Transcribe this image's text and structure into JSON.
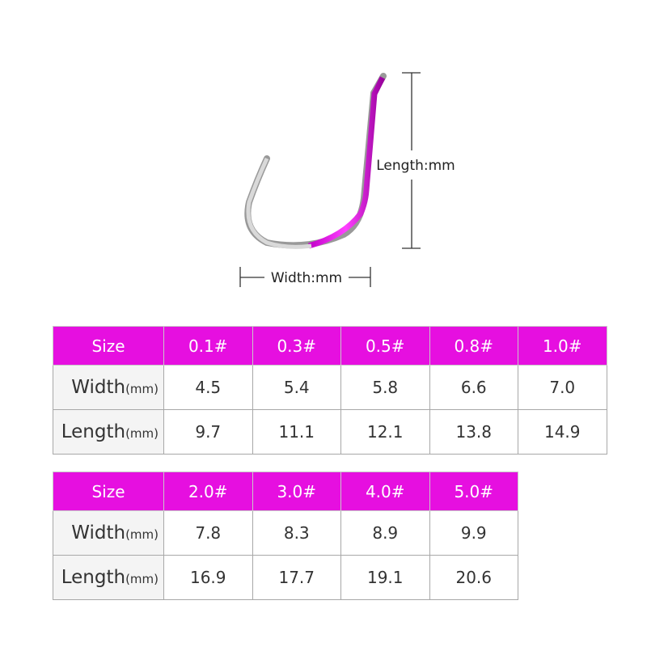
{
  "diagram": {
    "length_label": "Length:mm",
    "width_label": "Width:mm"
  },
  "tables": [
    {
      "header": [
        "Size",
        "0.1#",
        "0.3#",
        "0.5#",
        "0.8#",
        "1.0#"
      ],
      "rows": [
        {
          "label": "Width",
          "unit": "(mm)",
          "cells": [
            "4.5",
            "5.4",
            "5.8",
            "6.6",
            "7.0"
          ]
        },
        {
          "label": "Length",
          "unit": "(mm)",
          "cells": [
            "9.7",
            "11.1",
            "12.1",
            "13.8",
            "14.9"
          ]
        }
      ]
    },
    {
      "header": [
        "Size",
        "2.0#",
        "3.0#",
        "4.0#",
        "5.0#"
      ],
      "rows": [
        {
          "label": "Width",
          "unit": "(mm)",
          "cells": [
            "7.8",
            "8.3",
            "8.9",
            "9.9"
          ]
        },
        {
          "label": "Length",
          "unit": "(mm)",
          "cells": [
            "16.9",
            "17.7",
            "19.1",
            "20.6"
          ]
        }
      ]
    }
  ]
}
